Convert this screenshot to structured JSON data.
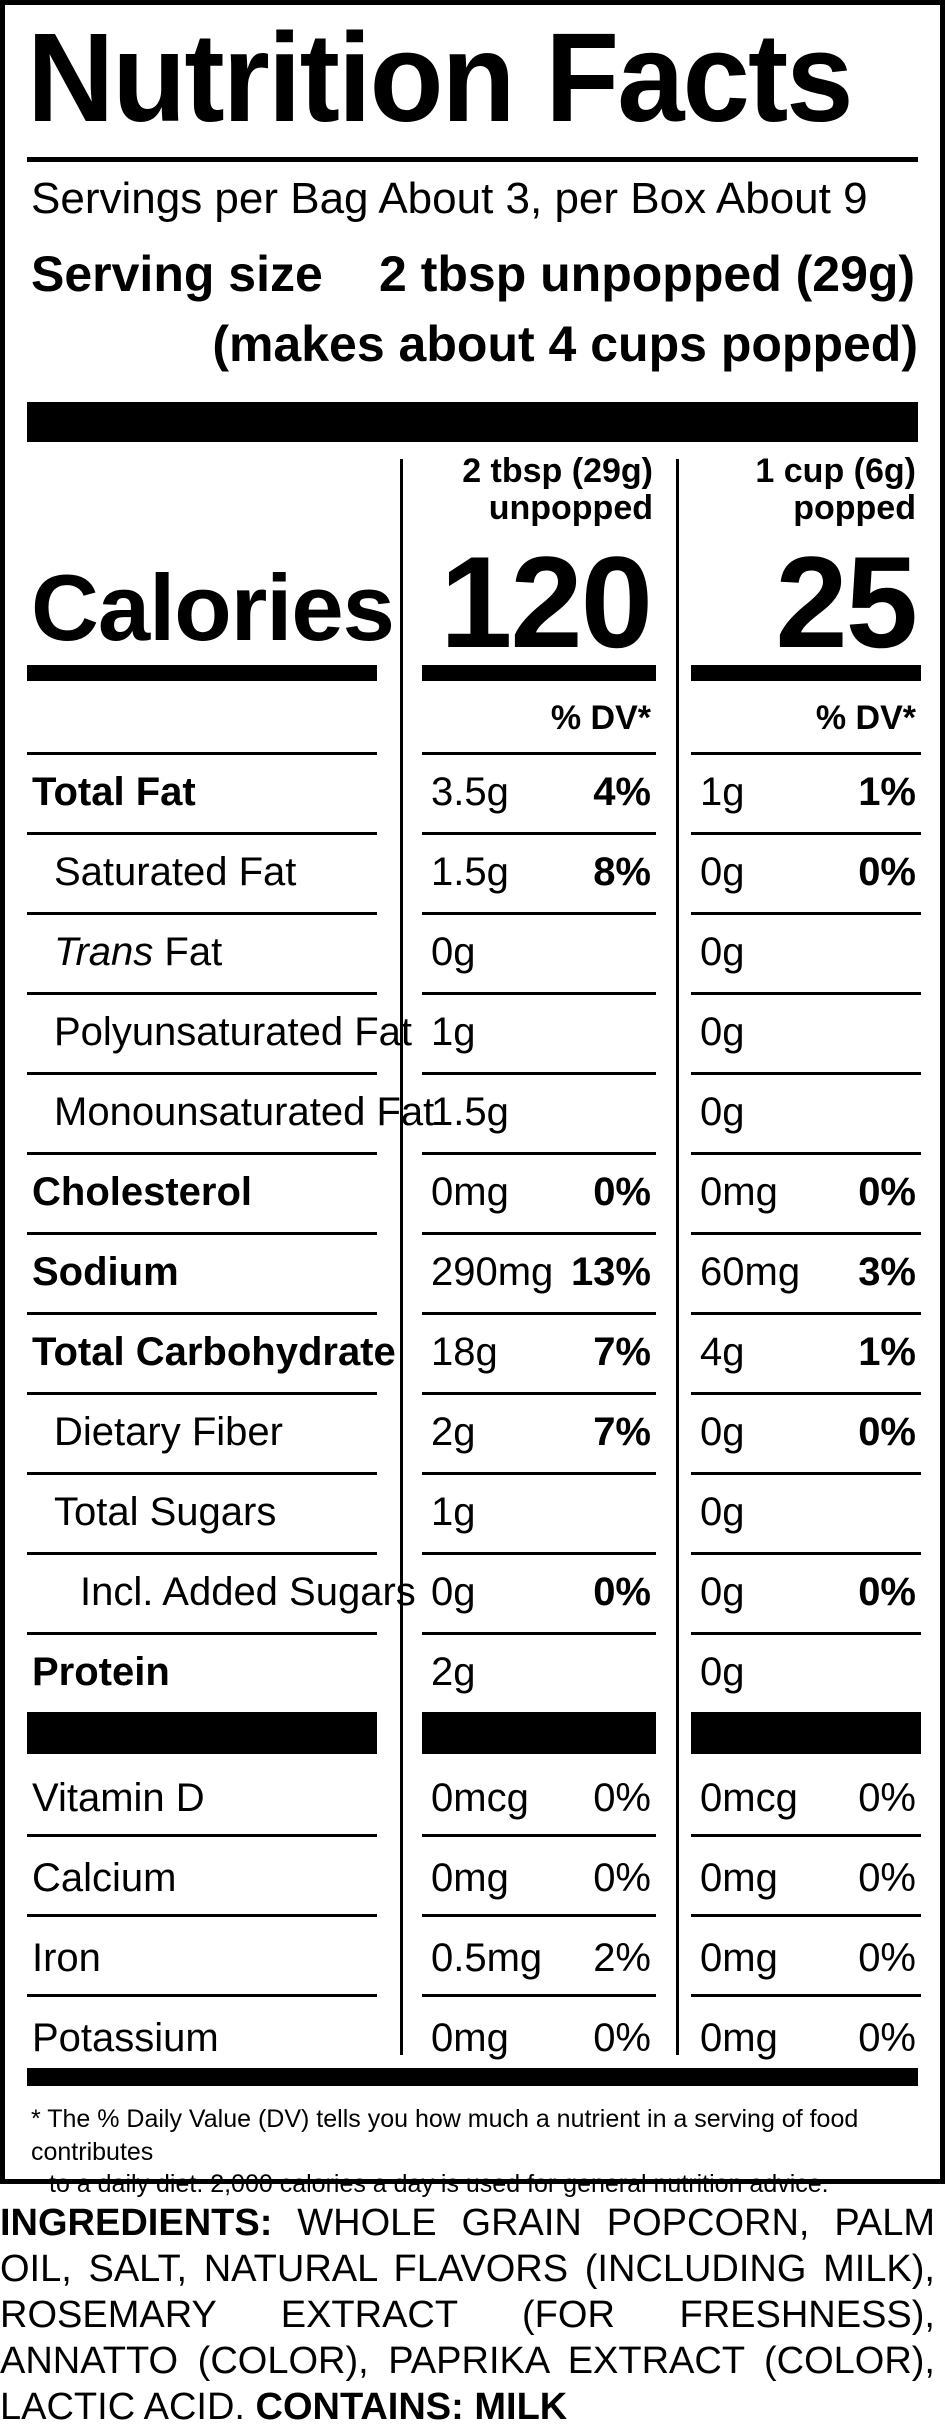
{
  "title": "Nutrition Facts",
  "servings": "Servings per Bag About 3, per Box About 9",
  "serving_size": {
    "label": "Serving size",
    "amount": "2 tbsp unpopped (29g)",
    "note": "(makes about 4 cups popped)"
  },
  "columns": [
    {
      "line1": "2 tbsp (29g)",
      "line2": "unpopped",
      "calories": "120",
      "dv_label": "% DV*"
    },
    {
      "line1": "1 cup (6g)",
      "line2": "popped",
      "calories": "25",
      "dv_label": "% DV*"
    }
  ],
  "calories_label": "Calories",
  "nutrients": [
    {
      "name": "Total Fat",
      "bold": true,
      "indent": 0,
      "c1_amt": "3.5g",
      "c1_dv": "4%",
      "c2_amt": "1g",
      "c2_dv": "1%"
    },
    {
      "name": "Saturated Fat",
      "bold": false,
      "indent": 1,
      "c1_amt": "1.5g",
      "c1_dv": "8%",
      "c2_amt": "0g",
      "c2_dv": "0%"
    },
    {
      "name_italic": "Trans",
      "name": " Fat",
      "bold": false,
      "indent": 1,
      "c1_amt": "0g",
      "c1_dv": "",
      "c2_amt": "0g",
      "c2_dv": ""
    },
    {
      "name": "Polyunsaturated Fat",
      "bold": false,
      "indent": 1,
      "c1_amt": "1g",
      "c1_dv": "",
      "c2_amt": "0g",
      "c2_dv": ""
    },
    {
      "name": "Monounsaturated Fat",
      "bold": false,
      "indent": 1,
      "c1_amt": "1.5g",
      "c1_dv": "",
      "c2_amt": "0g",
      "c2_dv": ""
    },
    {
      "name": "Cholesterol",
      "bold": true,
      "indent": 0,
      "c1_amt": "0mg",
      "c1_dv": "0%",
      "c2_amt": "0mg",
      "c2_dv": "0%"
    },
    {
      "name": "Sodium",
      "bold": true,
      "indent": 0,
      "c1_amt": "290mg",
      "c1_dv": "13%",
      "c2_amt": "60mg",
      "c2_dv": "3%"
    },
    {
      "name": "Total Carbohydrate",
      "bold": true,
      "indent": 0,
      "c1_amt": "18g",
      "c1_dv": "7%",
      "c2_amt": "4g",
      "c2_dv": "1%"
    },
    {
      "name": "Dietary Fiber",
      "bold": false,
      "indent": 1,
      "c1_amt": "2g",
      "c1_dv": "7%",
      "c2_amt": "0g",
      "c2_dv": "0%"
    },
    {
      "name": "Total Sugars",
      "bold": false,
      "indent": 1,
      "c1_amt": "1g",
      "c1_dv": "",
      "c2_amt": "0g",
      "c2_dv": ""
    },
    {
      "name": "Incl. Added Sugars",
      "bold": false,
      "indent": 2,
      "c1_amt": "0g",
      "c1_dv": "0%",
      "c2_amt": "0g",
      "c2_dv": "0%"
    },
    {
      "name": "Protein",
      "bold": true,
      "indent": 0,
      "c1_amt": "2g",
      "c1_dv": "",
      "c2_amt": "0g",
      "c2_dv": ""
    }
  ],
  "vitamins": [
    {
      "name": "Vitamin D",
      "c1_amt": "0mcg",
      "c1_dv": "0%",
      "c2_amt": "0mcg",
      "c2_dv": "0%"
    },
    {
      "name": "Calcium",
      "c1_amt": "0mg",
      "c1_dv": "0%",
      "c2_amt": "0mg",
      "c2_dv": "0%"
    },
    {
      "name": "Iron",
      "c1_amt": "0.5mg",
      "c1_dv": "2%",
      "c2_amt": "0mg",
      "c2_dv": "0%"
    },
    {
      "name": "Potassium",
      "c1_amt": "0mg",
      "c1_dv": "0%",
      "c2_amt": "0mg",
      "c2_dv": "0%"
    }
  ],
  "footnote": {
    "line1": "* The % Daily Value (DV) tells you how much a nutrient in a serving of food contributes",
    "line2": "to a daily diet. 2,000 calories a day is used for general nutrition advice."
  },
  "ingredients": {
    "label": "INGREDIENTS:",
    "text": "WHOLE GRAIN POPCORN, PALM OIL, SALT, NATURAL FLAVORS (INCLUDING MILK), ROSEMARY EXTRACT (FOR FRESHNESS), ANNATTO (COLOR), PAPRIKA EXTRACT (COLOR), LACTIC ACID.",
    "contains_label": "CONTAINS:",
    "contains": "MILK"
  }
}
